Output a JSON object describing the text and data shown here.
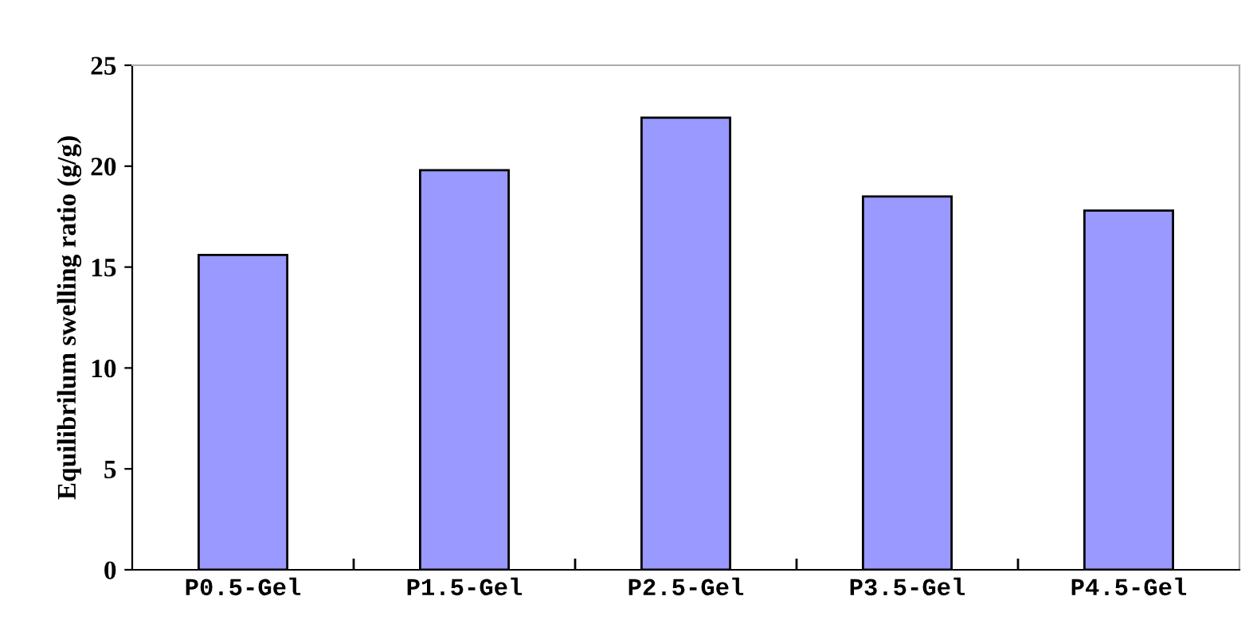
{
  "chart_data": {
    "type": "bar",
    "ylabel": "Equilibrilum swelling ratio (g/g)",
    "categories": [
      "P0.5-Gel",
      "P1.5-Gel",
      "P2.5-Gel",
      "P3.5-Gel",
      "P4.5-Gel"
    ],
    "values": [
      15.6,
      19.8,
      22.4,
      18.5,
      17.8
    ],
    "color": "#9999ff",
    "ylim": [
      0,
      25
    ],
    "yticks": [
      0,
      5,
      10,
      15,
      20,
      25
    ],
    "grid": false,
    "legend": false
  }
}
